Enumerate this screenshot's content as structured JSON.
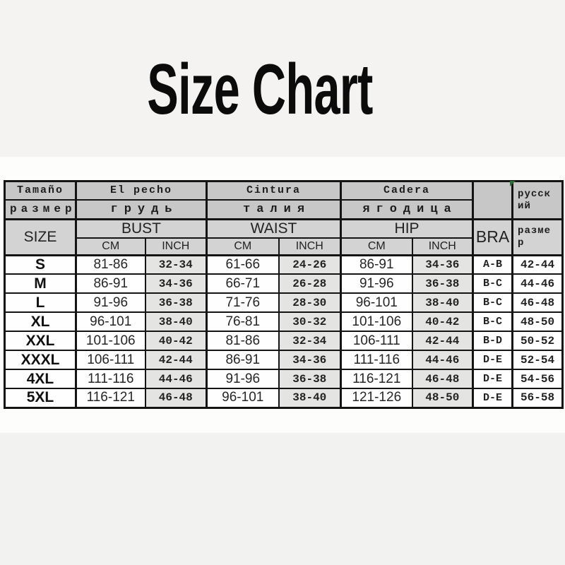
{
  "title": "Size Chart",
  "colors": {
    "page_background": "#f4f3f1",
    "panel_background": "#fdfdfc",
    "header_dark_gray": "#c7c7c7",
    "header_light_gray": "#d3d3d3",
    "inch_cell_gray": "#e4e4e3",
    "border_black": "#141414",
    "corner_marker_green": "#2f6b38"
  },
  "table": {
    "header": {
      "spanish": {
        "size": "Tamaño",
        "bust": "El pecho",
        "waist": "Cintura",
        "hip": "Cadera"
      },
      "russian_row": {
        "size": "размер",
        "bust": "грудь",
        "waist": "талия",
        "hip": "ягодица"
      },
      "english": {
        "size": "SIZE",
        "bust": "BUST",
        "waist": "WAIST",
        "hip": "HIP",
        "bra": "BRA"
      },
      "russian_col": {
        "top": "русский",
        "bottom": "размер"
      },
      "units": {
        "cm": "CM",
        "inch": "INCH"
      }
    },
    "rows": [
      {
        "size": "S",
        "bust_cm": "81-86",
        "bust_inch": "32-34",
        "waist_cm": "61-66",
        "waist_inch": "24-26",
        "hip_cm": "86-91",
        "hip_inch": "34-36",
        "bra": "A-B",
        "ru": "42-44"
      },
      {
        "size": "M",
        "bust_cm": "86-91",
        "bust_inch": "34-36",
        "waist_cm": "66-71",
        "waist_inch": "26-28",
        "hip_cm": "91-96",
        "hip_inch": "36-38",
        "bra": "B-C",
        "ru": "44-46"
      },
      {
        "size": "L",
        "bust_cm": "91-96",
        "bust_inch": "36-38",
        "waist_cm": "71-76",
        "waist_inch": "28-30",
        "hip_cm": "96-101",
        "hip_inch": "38-40",
        "bra": "B-C",
        "ru": "46-48"
      },
      {
        "size": "XL",
        "bust_cm": "96-101",
        "bust_inch": "38-40",
        "waist_cm": "76-81",
        "waist_inch": "30-32",
        "hip_cm": "101-106",
        "hip_inch": "40-42",
        "bra": "B-C",
        "ru": "48-50"
      },
      {
        "size": "XXL",
        "bust_cm": "101-106",
        "bust_inch": "40-42",
        "waist_cm": "81-86",
        "waist_inch": "32-34",
        "hip_cm": "106-111",
        "hip_inch": "42-44",
        "bra": "B-D",
        "ru": "50-52"
      },
      {
        "size": "XXXL",
        "bust_cm": "106-111",
        "bust_inch": "42-44",
        "waist_cm": "86-91",
        "waist_inch": "34-36",
        "hip_cm": "111-116",
        "hip_inch": "44-46",
        "bra": "D-E",
        "ru": "52-54"
      },
      {
        "size": "4XL",
        "bust_cm": "111-116",
        "bust_inch": "44-46",
        "waist_cm": "91-96",
        "waist_inch": "36-38",
        "hip_cm": "116-121",
        "hip_inch": "46-48",
        "bra": "D-E",
        "ru": "54-56"
      },
      {
        "size": "5XL",
        "bust_cm": "116-121",
        "bust_inch": "46-48",
        "waist_cm": "96-101",
        "waist_inch": "38-40",
        "hip_cm": "121-126",
        "hip_inch": "48-50",
        "bra": "D-E",
        "ru": "56-58"
      }
    ]
  }
}
